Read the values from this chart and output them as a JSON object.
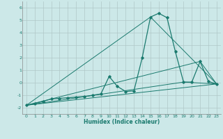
{
  "title": "",
  "xlabel": "Humidex (Indice chaleur)",
  "ylabel": "",
  "xlim": [
    -0.5,
    23.5
  ],
  "ylim": [
    -2.5,
    6.5
  ],
  "yticks": [
    -2,
    -1,
    0,
    1,
    2,
    3,
    4,
    5,
    6
  ],
  "ytick_labels": [
    "-2",
    "-1",
    "0",
    "1",
    "2",
    "3",
    "4",
    "5",
    "6"
  ],
  "xticks": [
    0,
    1,
    2,
    3,
    4,
    5,
    6,
    7,
    8,
    9,
    10,
    11,
    12,
    13,
    14,
    15,
    16,
    17,
    18,
    19,
    20,
    21,
    22,
    23
  ],
  "background_color": "#cce8e8",
  "grid_color": "#b0c8c8",
  "line_color": "#1a7a6e",
  "lines": [
    {
      "x": [
        0,
        1,
        2,
        3,
        4,
        5,
        6,
        7,
        8,
        9,
        10,
        11,
        12,
        13,
        14,
        15,
        16,
        17,
        18,
        19,
        20,
        21,
        22,
        23
      ],
      "y": [
        -1.8,
        -1.65,
        -1.5,
        -1.3,
        -1.25,
        -1.2,
        -1.15,
        -1.1,
        -1.0,
        -0.9,
        0.5,
        -0.3,
        -0.7,
        -0.65,
        2.0,
        5.25,
        5.55,
        5.2,
        2.5,
        0.05,
        0.05,
        1.7,
        0.1,
        -0.1
      ],
      "linewidth": 0.9,
      "with_markers": true
    },
    {
      "x": [
        0,
        23
      ],
      "y": [
        -1.8,
        -0.1
      ],
      "linewidth": 0.7,
      "with_markers": false
    },
    {
      "x": [
        0,
        15,
        23
      ],
      "y": [
        -1.8,
        5.25,
        -0.1
      ],
      "linewidth": 0.7,
      "with_markers": false
    },
    {
      "x": [
        0,
        21,
        23
      ],
      "y": [
        -1.8,
        1.7,
        -0.1
      ],
      "linewidth": 0.7,
      "with_markers": false
    },
    {
      "x": [
        0,
        19,
        23
      ],
      "y": [
        -1.8,
        0.05,
        -0.1
      ],
      "linewidth": 0.7,
      "with_markers": false
    }
  ]
}
